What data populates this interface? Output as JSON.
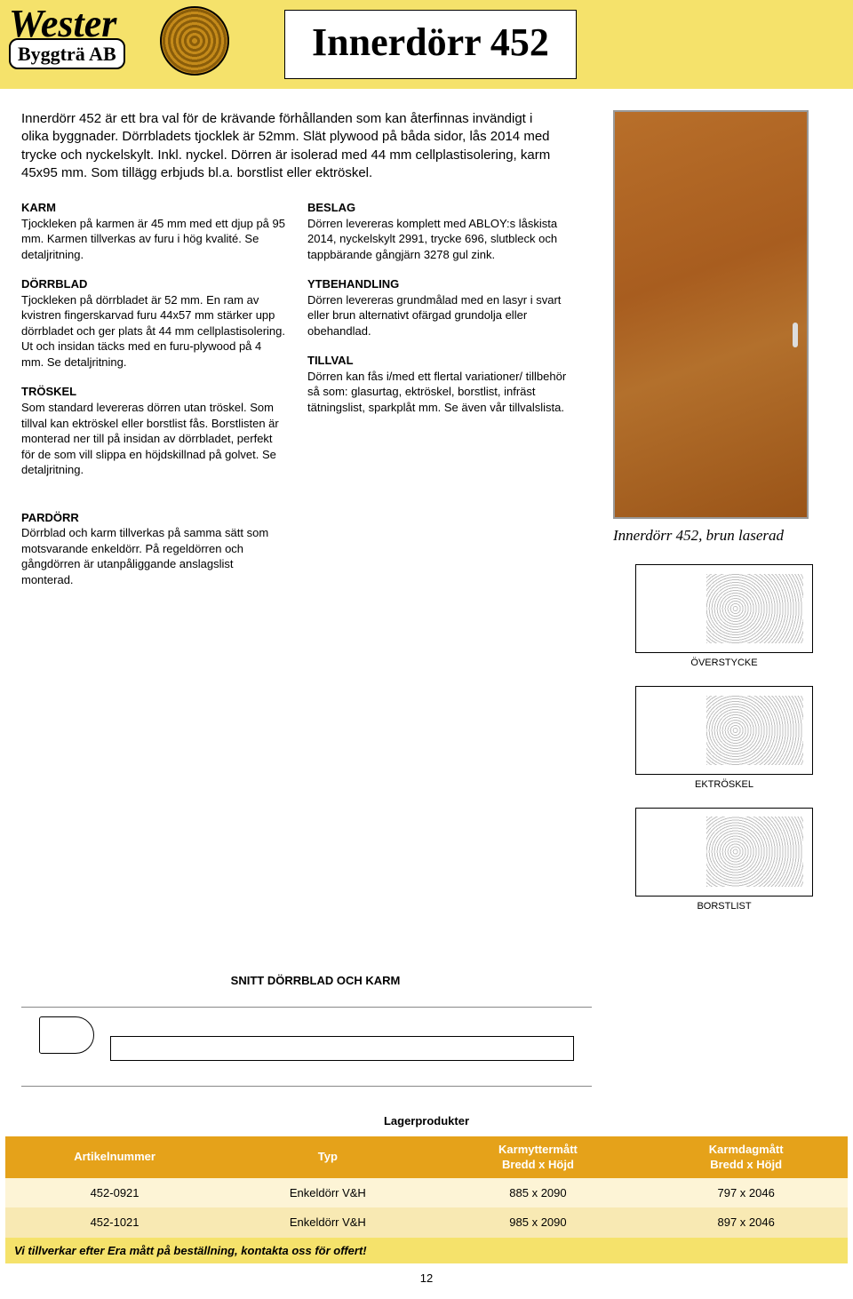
{
  "header": {
    "logo_top": "Wester",
    "logo_bottom": "Byggträ AB",
    "title": "Innerdörr 452"
  },
  "intro": "Innerdörr 452 är ett bra val för de krävande förhållanden som kan återfinnas invändigt i olika byggnader. Dörrbladets tjocklek är 52mm. Slät plywood på båda sidor, lås 2014 med trycke och nyckelskylt. Inkl. nyckel. Dörren är isolerad med 44 mm cellplastisolering, karm 45x95 mm. Som tillägg erbjuds bl.a. borstlist eller ektröskel.",
  "sections": {
    "karm": {
      "title": "KARM",
      "body": "Tjockleken på karmen är 45 mm med ett djup på 95 mm. Karmen tillverkas av furu i hög kvalité. Se detaljritning."
    },
    "dorrblad": {
      "title": "DÖRRBLAD",
      "body": "Tjockleken på dörrbladet är 52 mm. En ram av kvistren fingerskarvad furu 44x57 mm stärker upp dörrbladet och ger plats åt 44 mm cellplastisolering. Ut och insidan täcks med en furu-plywood på 4 mm. Se detaljritning."
    },
    "troskel": {
      "title": "TRÖSKEL",
      "body": "Som standard levereras dörren utan tröskel. Som tillval kan ektröskel eller borstlist fås. Borstlisten är monterad ner till på insidan av dörrbladet, perfekt för de som vill slippa en höjdskillnad på golvet. Se detaljritning."
    },
    "beslag": {
      "title": "BESLAG",
      "body": "Dörren levereras komplett med ABLOY:s låskista 2014, nyckelskylt 2991, trycke 696, slutbleck och tappbärande gångjärn 3278 gul zink."
    },
    "yt": {
      "title": "YTBEHANDLING",
      "body": "Dörren levereras grundmålad med en lasyr i svart eller brun alternativt ofärgad grundolja eller obehandlad."
    },
    "tillval": {
      "title": "TILLVAL",
      "body": "Dörren kan fås i/med ett flertal variationer/ tillbehör så som: glasurtag, ektröskel, borstlist, infräst tätningslist, sparkplåt mm. Se även vår tillvalslista."
    },
    "pardorr": {
      "title": "PARDÖRR",
      "body": "Dörrblad och karm tillverkas på samma sätt som motsvarande enkeldörr. På regeldörren och gångdörren är utanpåliggande anslagslist monterad."
    }
  },
  "caption": "Innerdörr 452, brun laserad",
  "tech_labels": {
    "overstycke": "ÖVERSTYCKE",
    "ektroskel": "EKTRÖSKEL",
    "borstlist": "BORSTLIST"
  },
  "snitt_title": "SNITT DÖRRBLAD OCH KARM",
  "table": {
    "lager_title": "Lagerprodukter",
    "headers": {
      "artnr": "Artikelnummer",
      "typ": "Typ",
      "karmytter": "Karmyttermått",
      "karmdag": "Karmdagmått",
      "bxh": "Bredd x Höjd"
    },
    "rows": [
      {
        "artnr": "452-0921",
        "typ": "Enkeldörr V&H",
        "ytter": "885 x 2090",
        "dag": "797 x 2046"
      },
      {
        "artnr": "452-1021",
        "typ": "Enkeldörr V&H",
        "ytter": "985 x 2090",
        "dag": "897 x 2046"
      }
    ],
    "footnote": "Vi tillverkar efter Era mått på beställning, kontakta oss för offert!"
  },
  "page_number": "12",
  "colors": {
    "banner_bg": "#f5e26b",
    "table_header_bg": "#e5a21a",
    "row_odd_bg": "#fdf4d6",
    "row_even_bg": "#f8e9b3",
    "footnote_bg": "#f5e26b",
    "door_color": "#a85d1f"
  }
}
